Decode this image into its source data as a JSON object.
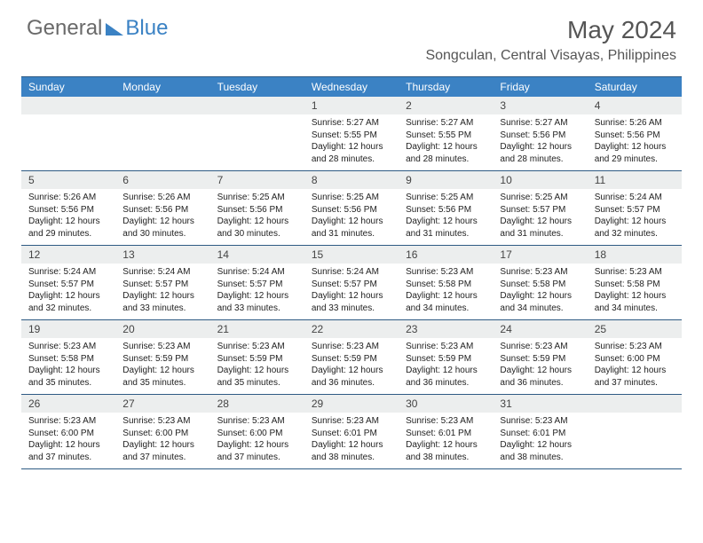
{
  "logo": {
    "text1": "General",
    "text2": "Blue"
  },
  "header": {
    "month_title": "May 2024",
    "location": "Songculan, Central Visayas, Philippines"
  },
  "colors": {
    "header_bar": "#3b82c4",
    "header_text": "#ffffff",
    "daynum_bg": "#eceeee",
    "border": "#2f5b84",
    "title_text": "#555555"
  },
  "weekdays": [
    "Sunday",
    "Monday",
    "Tuesday",
    "Wednesday",
    "Thursday",
    "Friday",
    "Saturday"
  ],
  "weeks": [
    [
      {
        "day": "",
        "sunrise": "",
        "sunset": "",
        "daylight": ""
      },
      {
        "day": "",
        "sunrise": "",
        "sunset": "",
        "daylight": ""
      },
      {
        "day": "",
        "sunrise": "",
        "sunset": "",
        "daylight": ""
      },
      {
        "day": "1",
        "sunrise": "Sunrise: 5:27 AM",
        "sunset": "Sunset: 5:55 PM",
        "daylight": "Daylight: 12 hours and 28 minutes."
      },
      {
        "day": "2",
        "sunrise": "Sunrise: 5:27 AM",
        "sunset": "Sunset: 5:55 PM",
        "daylight": "Daylight: 12 hours and 28 minutes."
      },
      {
        "day": "3",
        "sunrise": "Sunrise: 5:27 AM",
        "sunset": "Sunset: 5:56 PM",
        "daylight": "Daylight: 12 hours and 28 minutes."
      },
      {
        "day": "4",
        "sunrise": "Sunrise: 5:26 AM",
        "sunset": "Sunset: 5:56 PM",
        "daylight": "Daylight: 12 hours and 29 minutes."
      }
    ],
    [
      {
        "day": "5",
        "sunrise": "Sunrise: 5:26 AM",
        "sunset": "Sunset: 5:56 PM",
        "daylight": "Daylight: 12 hours and 29 minutes."
      },
      {
        "day": "6",
        "sunrise": "Sunrise: 5:26 AM",
        "sunset": "Sunset: 5:56 PM",
        "daylight": "Daylight: 12 hours and 30 minutes."
      },
      {
        "day": "7",
        "sunrise": "Sunrise: 5:25 AM",
        "sunset": "Sunset: 5:56 PM",
        "daylight": "Daylight: 12 hours and 30 minutes."
      },
      {
        "day": "8",
        "sunrise": "Sunrise: 5:25 AM",
        "sunset": "Sunset: 5:56 PM",
        "daylight": "Daylight: 12 hours and 31 minutes."
      },
      {
        "day": "9",
        "sunrise": "Sunrise: 5:25 AM",
        "sunset": "Sunset: 5:56 PM",
        "daylight": "Daylight: 12 hours and 31 minutes."
      },
      {
        "day": "10",
        "sunrise": "Sunrise: 5:25 AM",
        "sunset": "Sunset: 5:57 PM",
        "daylight": "Daylight: 12 hours and 31 minutes."
      },
      {
        "day": "11",
        "sunrise": "Sunrise: 5:24 AM",
        "sunset": "Sunset: 5:57 PM",
        "daylight": "Daylight: 12 hours and 32 minutes."
      }
    ],
    [
      {
        "day": "12",
        "sunrise": "Sunrise: 5:24 AM",
        "sunset": "Sunset: 5:57 PM",
        "daylight": "Daylight: 12 hours and 32 minutes."
      },
      {
        "day": "13",
        "sunrise": "Sunrise: 5:24 AM",
        "sunset": "Sunset: 5:57 PM",
        "daylight": "Daylight: 12 hours and 33 minutes."
      },
      {
        "day": "14",
        "sunrise": "Sunrise: 5:24 AM",
        "sunset": "Sunset: 5:57 PM",
        "daylight": "Daylight: 12 hours and 33 minutes."
      },
      {
        "day": "15",
        "sunrise": "Sunrise: 5:24 AM",
        "sunset": "Sunset: 5:57 PM",
        "daylight": "Daylight: 12 hours and 33 minutes."
      },
      {
        "day": "16",
        "sunrise": "Sunrise: 5:23 AM",
        "sunset": "Sunset: 5:58 PM",
        "daylight": "Daylight: 12 hours and 34 minutes."
      },
      {
        "day": "17",
        "sunrise": "Sunrise: 5:23 AM",
        "sunset": "Sunset: 5:58 PM",
        "daylight": "Daylight: 12 hours and 34 minutes."
      },
      {
        "day": "18",
        "sunrise": "Sunrise: 5:23 AM",
        "sunset": "Sunset: 5:58 PM",
        "daylight": "Daylight: 12 hours and 34 minutes."
      }
    ],
    [
      {
        "day": "19",
        "sunrise": "Sunrise: 5:23 AM",
        "sunset": "Sunset: 5:58 PM",
        "daylight": "Daylight: 12 hours and 35 minutes."
      },
      {
        "day": "20",
        "sunrise": "Sunrise: 5:23 AM",
        "sunset": "Sunset: 5:59 PM",
        "daylight": "Daylight: 12 hours and 35 minutes."
      },
      {
        "day": "21",
        "sunrise": "Sunrise: 5:23 AM",
        "sunset": "Sunset: 5:59 PM",
        "daylight": "Daylight: 12 hours and 35 minutes."
      },
      {
        "day": "22",
        "sunrise": "Sunrise: 5:23 AM",
        "sunset": "Sunset: 5:59 PM",
        "daylight": "Daylight: 12 hours and 36 minutes."
      },
      {
        "day": "23",
        "sunrise": "Sunrise: 5:23 AM",
        "sunset": "Sunset: 5:59 PM",
        "daylight": "Daylight: 12 hours and 36 minutes."
      },
      {
        "day": "24",
        "sunrise": "Sunrise: 5:23 AM",
        "sunset": "Sunset: 5:59 PM",
        "daylight": "Daylight: 12 hours and 36 minutes."
      },
      {
        "day": "25",
        "sunrise": "Sunrise: 5:23 AM",
        "sunset": "Sunset: 6:00 PM",
        "daylight": "Daylight: 12 hours and 37 minutes."
      }
    ],
    [
      {
        "day": "26",
        "sunrise": "Sunrise: 5:23 AM",
        "sunset": "Sunset: 6:00 PM",
        "daylight": "Daylight: 12 hours and 37 minutes."
      },
      {
        "day": "27",
        "sunrise": "Sunrise: 5:23 AM",
        "sunset": "Sunset: 6:00 PM",
        "daylight": "Daylight: 12 hours and 37 minutes."
      },
      {
        "day": "28",
        "sunrise": "Sunrise: 5:23 AM",
        "sunset": "Sunset: 6:00 PM",
        "daylight": "Daylight: 12 hours and 37 minutes."
      },
      {
        "day": "29",
        "sunrise": "Sunrise: 5:23 AM",
        "sunset": "Sunset: 6:01 PM",
        "daylight": "Daylight: 12 hours and 38 minutes."
      },
      {
        "day": "30",
        "sunrise": "Sunrise: 5:23 AM",
        "sunset": "Sunset: 6:01 PM",
        "daylight": "Daylight: 12 hours and 38 minutes."
      },
      {
        "day": "31",
        "sunrise": "Sunrise: 5:23 AM",
        "sunset": "Sunset: 6:01 PM",
        "daylight": "Daylight: 12 hours and 38 minutes."
      },
      {
        "day": "",
        "sunrise": "",
        "sunset": "",
        "daylight": ""
      }
    ]
  ]
}
